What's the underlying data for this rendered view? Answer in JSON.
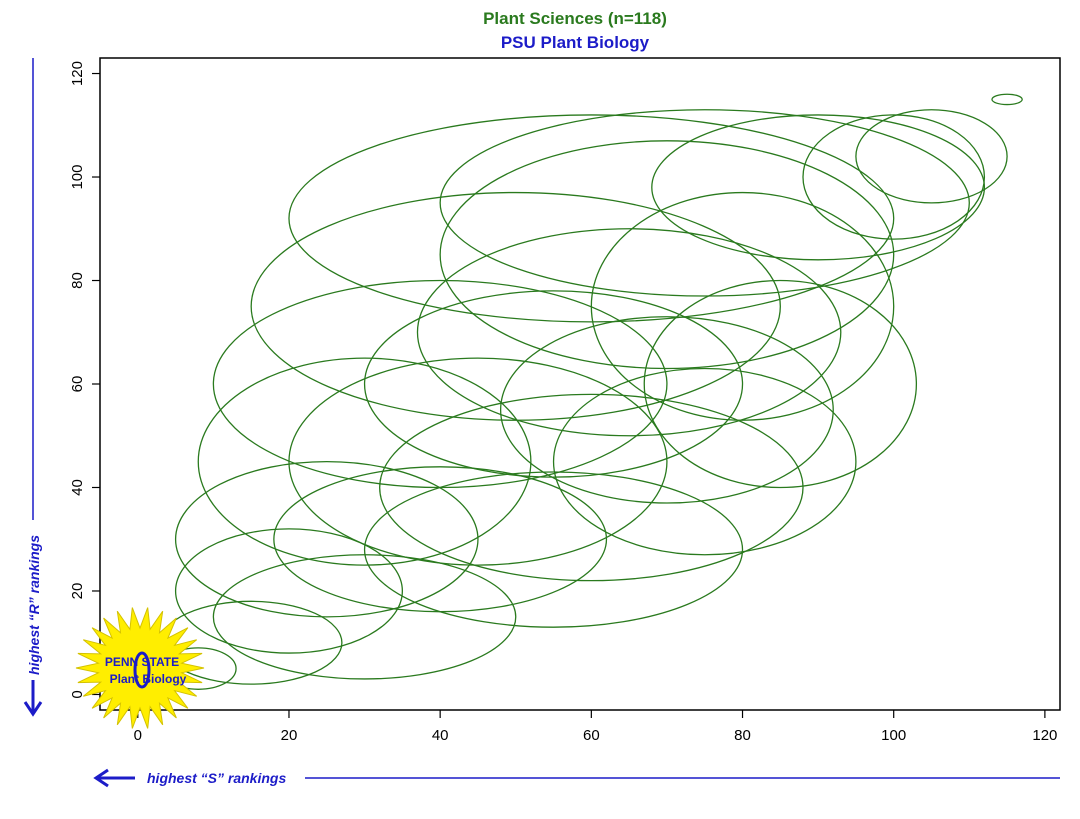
{
  "chart_data": {
    "type": "scatter",
    "title": "Plant Sciences (n=118)",
    "subtitle": "PSU Plant Biology",
    "xlabel": "highest “S” rankings",
    "ylabel": "highest “R” rankings",
    "xlim": [
      -5,
      122
    ],
    "ylim": [
      -3,
      123
    ],
    "x_ticks": [
      0,
      20,
      40,
      60,
      80,
      100,
      120
    ],
    "y_ticks": [
      0,
      20,
      40,
      60,
      80,
      100,
      120
    ],
    "grid": false,
    "series": [
      {
        "values": [
          {
            "cx": 75,
            "cy": 95,
            "rx": 35,
            "ry": 18
          },
          {
            "cx": 90,
            "cy": 98,
            "rx": 22,
            "ry": 14
          },
          {
            "cx": 100,
            "cy": 100,
            "rx": 12,
            "ry": 12
          },
          {
            "cx": 105,
            "cy": 104,
            "rx": 10,
            "ry": 9
          },
          {
            "cx": 60,
            "cy": 92,
            "rx": 40,
            "ry": 20
          },
          {
            "cx": 70,
            "cy": 85,
            "rx": 30,
            "ry": 22
          },
          {
            "cx": 50,
            "cy": 75,
            "rx": 35,
            "ry": 22
          },
          {
            "cx": 65,
            "cy": 70,
            "rx": 28,
            "ry": 20
          },
          {
            "cx": 80,
            "cy": 75,
            "rx": 20,
            "ry": 22
          },
          {
            "cx": 40,
            "cy": 60,
            "rx": 30,
            "ry": 20
          },
          {
            "cx": 55,
            "cy": 60,
            "rx": 25,
            "ry": 18
          },
          {
            "cx": 70,
            "cy": 55,
            "rx": 22,
            "ry": 18
          },
          {
            "cx": 85,
            "cy": 60,
            "rx": 18,
            "ry": 20
          },
          {
            "cx": 30,
            "cy": 45,
            "rx": 22,
            "ry": 20
          },
          {
            "cx": 45,
            "cy": 45,
            "rx": 25,
            "ry": 20
          },
          {
            "cx": 60,
            "cy": 40,
            "rx": 28,
            "ry": 18
          },
          {
            "cx": 75,
            "cy": 45,
            "rx": 20,
            "ry": 18
          },
          {
            "cx": 25,
            "cy": 30,
            "rx": 20,
            "ry": 15
          },
          {
            "cx": 40,
            "cy": 30,
            "rx": 22,
            "ry": 14
          },
          {
            "cx": 55,
            "cy": 28,
            "rx": 25,
            "ry": 15
          },
          {
            "cx": 20,
            "cy": 20,
            "rx": 15,
            "ry": 12
          },
          {
            "cx": 30,
            "cy": 15,
            "rx": 20,
            "ry": 12
          },
          {
            "cx": 15,
            "cy": 10,
            "rx": 12,
            "ry": 8
          },
          {
            "cx": 8,
            "cy": 5,
            "rx": 5,
            "ry": 4
          },
          {
            "cx": 115,
            "cy": 115,
            "rx": 2,
            "ry": 1
          }
        ]
      }
    ]
  },
  "logo": {
    "line1": "PENN STATE",
    "line2": "Plant Biology"
  },
  "colors": {
    "title": "#2a7a1e",
    "subtitle": "#1c1cc8",
    "ellipse": "#2a7a1e",
    "axis_note": "#1c1cc8",
    "logo_burst": "#ffee00"
  }
}
